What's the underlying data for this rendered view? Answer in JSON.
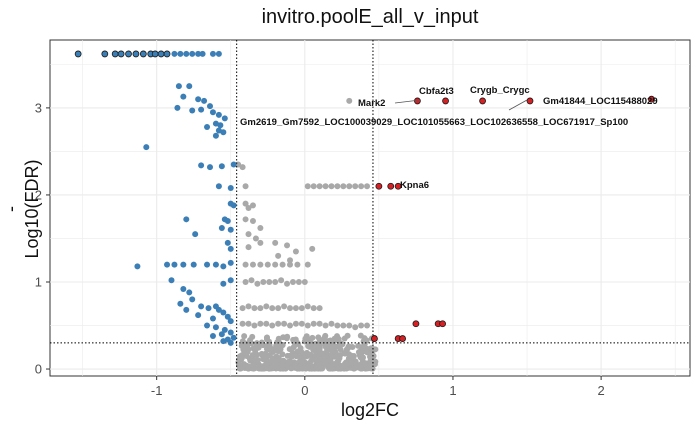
{
  "chart_data": {
    "type": "scatter",
    "title": "invitro.poolE_all_v_input",
    "xlabel": "log2FC",
    "ylabel": "-Log10(FDR)",
    "xlim": [
      -1.72,
      2.6
    ],
    "ylim": [
      -0.08,
      3.78
    ],
    "x_ticks": [
      -1,
      0,
      1,
      2
    ],
    "y_ticks": [
      0,
      1,
      2,
      3
    ],
    "grid": true,
    "thresholds": {
      "log2fc": [
        -0.46,
        0.46
      ],
      "fdr": 0.3
    },
    "colors": {
      "down": "#3b7fb6",
      "up": "#d62024",
      "ns": "#a9a9a9",
      "grid": "#ebebeb",
      "threshold": "#000000"
    },
    "series": [
      {
        "points": [
          [
            -1.53,
            3.62
          ],
          [
            -1.35,
            3.62
          ],
          [
            -1.28,
            3.62
          ],
          [
            -1.24,
            3.62
          ],
          [
            -1.19,
            3.62
          ],
          [
            -1.14,
            3.62
          ],
          [
            -1.09,
            3.62
          ],
          [
            -1.04,
            3.62
          ],
          [
            -1.01,
            3.62
          ],
          [
            -0.97,
            3.62
          ],
          [
            -0.93,
            3.62
          ],
          [
            -0.88,
            3.62
          ],
          [
            -0.84,
            3.62
          ],
          [
            -0.8,
            3.62
          ],
          [
            -0.76,
            3.62
          ],
          [
            -0.72,
            3.62
          ],
          [
            -0.69,
            3.62
          ],
          [
            -0.62,
            3.62
          ],
          [
            -0.58,
            3.62
          ],
          [
            -0.85,
            3.25
          ],
          [
            -0.78,
            3.25
          ],
          [
            -0.82,
            3.13
          ],
          [
            -0.72,
            3.1
          ],
          [
            -0.68,
            3.08
          ],
          [
            -0.64,
            3.02
          ],
          [
            -0.86,
            3.0
          ],
          [
            -0.76,
            2.97
          ],
          [
            -0.7,
            2.98
          ],
          [
            -0.62,
            2.95
          ],
          [
            -0.58,
            2.92
          ],
          [
            -0.54,
            2.88
          ],
          [
            -0.57,
            2.8
          ],
          [
            -0.6,
            2.82
          ],
          [
            -0.66,
            2.78
          ],
          [
            -0.58,
            2.74
          ],
          [
            -0.55,
            2.72
          ],
          [
            -0.6,
            2.68
          ],
          [
            -1.07,
            2.55
          ],
          [
            -0.7,
            2.34
          ],
          [
            -0.64,
            2.32
          ],
          [
            -0.56,
            2.33
          ],
          [
            -0.48,
            2.35
          ],
          [
            -0.58,
            2.1
          ],
          [
            -0.5,
            2.08
          ],
          [
            -0.5,
            1.9
          ],
          [
            -0.48,
            1.88
          ],
          [
            -0.54,
            1.72
          ],
          [
            -0.52,
            1.7
          ],
          [
            -0.8,
            1.72
          ],
          [
            -0.56,
            1.62
          ],
          [
            -0.5,
            1.6
          ],
          [
            -0.74,
            1.55
          ],
          [
            -0.52,
            1.45
          ],
          [
            -0.5,
            1.38
          ],
          [
            -0.93,
            1.2
          ],
          [
            -0.88,
            1.2
          ],
          [
            -0.82,
            1.2
          ],
          [
            -0.75,
            1.2
          ],
          [
            -0.66,
            1.2
          ],
          [
            -0.6,
            1.2
          ],
          [
            -0.55,
            1.18
          ],
          [
            -0.5,
            1.22
          ],
          [
            -1.13,
            1.18
          ],
          [
            -0.9,
            1.02
          ],
          [
            -0.5,
            1.02
          ],
          [
            -0.55,
            0.98
          ],
          [
            -0.82,
            0.92
          ],
          [
            -0.78,
            0.88
          ],
          [
            -0.76,
            0.8
          ],
          [
            -0.7,
            0.72
          ],
          [
            -0.84,
            0.75
          ],
          [
            -0.65,
            0.7
          ],
          [
            -0.6,
            0.72
          ],
          [
            -0.58,
            0.68
          ],
          [
            -0.55,
            0.65
          ],
          [
            -0.52,
            0.6
          ],
          [
            -0.5,
            0.55
          ],
          [
            -0.62,
            0.58
          ],
          [
            -0.72,
            0.62
          ],
          [
            -0.8,
            0.68
          ],
          [
            -0.66,
            0.5
          ],
          [
            -0.6,
            0.48
          ],
          [
            -0.54,
            0.45
          ],
          [
            -0.5,
            0.42
          ],
          [
            -0.56,
            0.4
          ],
          [
            -0.62,
            0.38
          ],
          [
            -0.52,
            0.34
          ],
          [
            -0.48,
            0.36
          ],
          [
            -0.5,
            0.3
          ],
          [
            -0.55,
            0.32
          ]
        ]
      },
      {
        "points": [
          [
            0.5,
            2.1
          ],
          [
            0.58,
            2.1
          ],
          [
            0.63,
            2.1
          ],
          [
            0.76,
            3.08
          ],
          [
            0.95,
            3.08
          ],
          [
            1.2,
            3.08
          ],
          [
            1.52,
            3.08
          ],
          [
            2.34,
            3.1
          ],
          [
            0.47,
            0.35
          ],
          [
            0.63,
            0.35
          ],
          [
            0.66,
            0.35
          ],
          [
            0.75,
            0.52
          ],
          [
            0.9,
            0.52
          ],
          [
            0.93,
            0.52
          ]
        ]
      },
      {
        "points": [
          [
            0.3,
            3.08
          ],
          [
            -0.45,
            2.35
          ],
          [
            -0.42,
            2.32
          ],
          [
            -0.4,
            2.1
          ],
          [
            0.02,
            2.1
          ],
          [
            0.06,
            2.1
          ],
          [
            0.1,
            2.1
          ],
          [
            0.14,
            2.1
          ],
          [
            0.18,
            2.1
          ],
          [
            0.22,
            2.1
          ],
          [
            0.26,
            2.1
          ],
          [
            0.3,
            2.1
          ],
          [
            0.34,
            2.1
          ],
          [
            0.38,
            2.1
          ],
          [
            0.42,
            2.1
          ],
          [
            -0.4,
            1.9
          ],
          [
            -0.35,
            1.88
          ],
          [
            -0.38,
            1.85
          ],
          [
            -0.4,
            1.72
          ],
          [
            -0.35,
            1.7
          ],
          [
            -0.3,
            1.62
          ],
          [
            -0.38,
            1.55
          ],
          [
            -0.33,
            1.5
          ],
          [
            -0.3,
            1.45
          ],
          [
            -0.38,
            1.4
          ],
          [
            -0.2,
            1.45
          ],
          [
            -0.12,
            1.42
          ],
          [
            -0.06,
            1.35
          ],
          [
            -0.18,
            1.3
          ],
          [
            -0.1,
            1.25
          ],
          [
            0.05,
            1.38
          ],
          [
            0.02,
            1.2
          ],
          [
            -0.4,
            1.2
          ],
          [
            -0.35,
            1.2
          ],
          [
            -0.3,
            1.2
          ],
          [
            -0.25,
            1.2
          ],
          [
            -0.2,
            1.2
          ],
          [
            -0.15,
            1.2
          ],
          [
            -0.1,
            1.2
          ],
          [
            -0.05,
            1.2
          ],
          [
            -0.4,
            1.0
          ],
          [
            -0.36,
            1.02
          ],
          [
            -0.32,
            0.98
          ],
          [
            -0.28,
            1.0
          ],
          [
            -0.24,
            1.0
          ],
          [
            -0.2,
            1.0
          ],
          [
            -0.16,
            1.02
          ],
          [
            -0.12,
            0.98
          ],
          [
            -0.08,
            1.0
          ],
          [
            -0.04,
            1.0
          ],
          [
            0.0,
            1.0
          ],
          [
            -0.42,
            0.7
          ],
          [
            -0.38,
            0.72
          ],
          [
            -0.34,
            0.7
          ],
          [
            -0.3,
            0.7
          ],
          [
            -0.26,
            0.72
          ],
          [
            -0.22,
            0.7
          ],
          [
            -0.18,
            0.7
          ],
          [
            -0.14,
            0.72
          ],
          [
            -0.1,
            0.7
          ],
          [
            -0.06,
            0.7
          ],
          [
            -0.02,
            0.7
          ],
          [
            0.02,
            0.72
          ],
          [
            0.06,
            0.7
          ],
          [
            0.1,
            0.7
          ],
          [
            -0.42,
            0.52
          ],
          [
            -0.38,
            0.52
          ],
          [
            -0.34,
            0.5
          ],
          [
            -0.3,
            0.52
          ],
          [
            -0.26,
            0.52
          ],
          [
            -0.22,
            0.5
          ],
          [
            -0.18,
            0.52
          ],
          [
            -0.14,
            0.52
          ],
          [
            -0.1,
            0.5
          ],
          [
            -0.06,
            0.52
          ],
          [
            -0.02,
            0.52
          ],
          [
            0.02,
            0.5
          ],
          [
            0.06,
            0.52
          ],
          [
            0.1,
            0.52
          ],
          [
            0.14,
            0.5
          ],
          [
            0.18,
            0.52
          ],
          [
            0.22,
            0.5
          ],
          [
            0.26,
            0.5
          ],
          [
            0.3,
            0.5
          ],
          [
            0.34,
            0.48
          ],
          [
            0.38,
            0.5
          ],
          [
            0.42,
            0.5
          ]
        ]
      }
    ],
    "annotations": [
      {
        "text": "Cbfa2t3",
        "x": 0.76,
        "y": 3.08
      },
      {
        "text": "Crygb_Crygc",
        "x": 1.2,
        "y": 3.08
      },
      {
        "text": "Mark2",
        "x": 0.76,
        "y": 3.08
      },
      {
        "text": "Gm41844_LOC115488029",
        "x": 2.34,
        "y": 3.1
      },
      {
        "text": "Gm2619_Gm7592_LOC100039029_LOC101055663_LOC102636558_LOC671917_Sp100",
        "x": 1.52,
        "y": 3.08
      },
      {
        "text": "Kpna6",
        "x": 0.63,
        "y": 2.1
      }
    ]
  }
}
